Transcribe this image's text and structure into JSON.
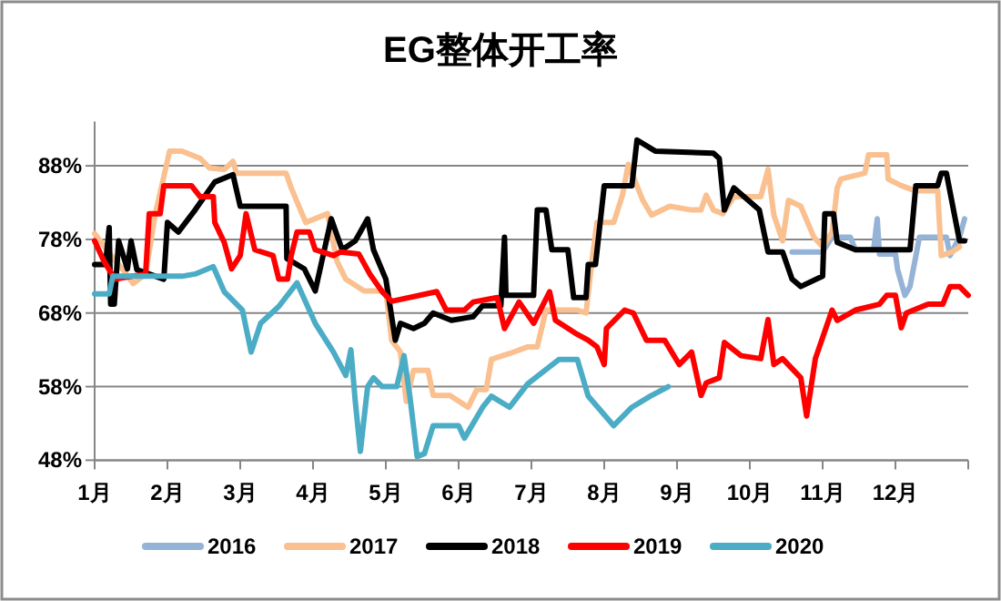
{
  "chart_data": {
    "type": "line",
    "title": "EG整体开工率",
    "xlim": [
      1,
      13
    ],
    "xticks": [
      {
        "value": 1,
        "label": "1月"
      },
      {
        "value": 2,
        "label": "2月"
      },
      {
        "value": 3,
        "label": "3月"
      },
      {
        "value": 4,
        "label": "4月"
      },
      {
        "value": 5,
        "label": "5月"
      },
      {
        "value": 6,
        "label": "6月"
      },
      {
        "value": 7,
        "label": "7月"
      },
      {
        "value": 8,
        "label": "8月"
      },
      {
        "value": 9,
        "label": "9月"
      },
      {
        "value": 10,
        "label": "10月"
      },
      {
        "value": 11,
        "label": "11月"
      },
      {
        "value": 12,
        "label": "12月"
      },
      {
        "value": 13,
        "label": null
      }
    ],
    "ylim": [
      48,
      94
    ],
    "yticks": [
      {
        "value": 48,
        "label": "48%"
      },
      {
        "value": 58,
        "label": "58%"
      },
      {
        "value": 68,
        "label": "68%"
      },
      {
        "value": 78,
        "label": "78%"
      },
      {
        "value": 88,
        "label": "88%"
      }
    ],
    "grid": "y",
    "legend": "bottom",
    "marker": "none",
    "line_style": "solid",
    "series": [
      {
        "name": "2016",
        "color": "#95b3d7",
        "x": [
          10.58,
          11.0,
          11.13,
          11.38,
          11.45,
          11.7,
          11.75,
          11.78,
          12.0,
          12.03,
          12.13,
          12.2,
          12.33,
          12.7,
          12.75,
          12.88,
          12.95
        ],
        "values": [
          76.3,
          76.3,
          78.3,
          78.3,
          76.6,
          76.6,
          80.8,
          76,
          76,
          73.9,
          70.4,
          71.6,
          78.3,
          78.3,
          75.8,
          78.3,
          80.8
        ]
      },
      {
        "name": "2017",
        "color": "#fac090",
        "x": [
          1.0,
          1.25,
          1.38,
          1.53,
          1.7,
          1.83,
          2.03,
          2.2,
          2.45,
          2.58,
          2.78,
          2.9,
          2.95,
          3.63,
          3.7,
          3.9,
          4.2,
          4.33,
          4.45,
          4.7,
          5.0,
          5.08,
          5.2,
          5.28,
          5.38,
          5.58,
          5.65,
          5.88,
          6.13,
          6.25,
          6.38,
          6.45,
          6.7,
          6.95,
          7.08,
          7.2,
          7.38,
          7.63,
          7.75,
          7.83,
          7.9,
          8.13,
          8.25,
          8.33,
          8.53,
          8.65,
          8.9,
          9.2,
          9.33,
          9.4,
          9.5,
          9.63,
          9.78,
          10.15,
          10.25,
          10.33,
          10.45,
          10.53,
          10.7,
          10.88,
          11.0,
          11.13,
          11.2,
          11.25,
          11.58,
          11.63,
          11.88,
          11.9,
          12.08,
          12.28,
          12.58,
          12.63,
          12.78,
          12.88
        ],
        "values": [
          78.8,
          75.5,
          74,
          72,
          73.3,
          81.3,
          90,
          90,
          89,
          87.7,
          87.5,
          88.6,
          87,
          87,
          85,
          80.3,
          81.5,
          75,
          72.6,
          71,
          71,
          64.3,
          62.7,
          56,
          60.2,
          60.2,
          56.8,
          56.8,
          55.2,
          57.6,
          57.6,
          61.7,
          62.5,
          63.4,
          63.4,
          68.4,
          68.4,
          68.4,
          68,
          75,
          80.3,
          80.3,
          84,
          88.2,
          83.3,
          81.3,
          82.5,
          82,
          82,
          84,
          82,
          81.5,
          83.8,
          83.8,
          87.5,
          81.3,
          77.8,
          83.3,
          82.5,
          78.3,
          77,
          79,
          85,
          86.2,
          87,
          89.5,
          89.5,
          86.2,
          85.3,
          84.6,
          84.6,
          75.8,
          76.3,
          77
        ]
      },
      {
        "name": "2018",
        "color": "#000000",
        "x": [
          1.0,
          1.15,
          1.2,
          1.22,
          1.27,
          1.33,
          1.45,
          1.5,
          1.58,
          1.95,
          2.0,
          2.15,
          2.38,
          2.65,
          2.9,
          3.0,
          3.63,
          3.64,
          3.88,
          4.03,
          4.25,
          4.4,
          4.58,
          4.75,
          4.83,
          5.0,
          5.13,
          5.2,
          5.38,
          5.53,
          5.65,
          5.9,
          6.2,
          6.33,
          6.58,
          6.63,
          6.65,
          7.03,
          7.08,
          7.2,
          7.28,
          7.5,
          7.58,
          7.75,
          7.78,
          7.88,
          8.0,
          8.38,
          8.45,
          8.7,
          9.5,
          9.58,
          9.65,
          9.78,
          10.13,
          10.25,
          10.45,
          10.58,
          10.7,
          11.0,
          11.03,
          11.15,
          11.2,
          11.45,
          12.2,
          12.28,
          12.58,
          12.63,
          12.7,
          12.88,
          12.95
        ],
        "values": [
          74.6,
          74.6,
          79.6,
          69.2,
          69.2,
          77.8,
          74,
          77.8,
          73.9,
          72.6,
          80.3,
          79,
          82,
          85.8,
          86.8,
          82.5,
          82.5,
          75.4,
          74,
          71,
          80.8,
          76.6,
          77.8,
          80.8,
          76.6,
          72.6,
          64.3,
          66.6,
          65.9,
          66.6,
          68,
          67,
          67.5,
          69,
          69,
          78.3,
          70.4,
          70.4,
          82,
          82,
          76.6,
          76.6,
          70.1,
          70.1,
          74.6,
          74.6,
          85.3,
          85.3,
          91.5,
          90,
          89.7,
          89,
          82,
          85,
          82,
          76.3,
          76.3,
          72.6,
          71.6,
          73,
          81.5,
          81.5,
          77.6,
          76.6,
          76.6,
          85.3,
          85.3,
          87,
          87,
          77.8,
          77.8
        ]
      },
      {
        "name": "2019",
        "color": "#ff0000",
        "x": [
          1.0,
          1.13,
          1.28,
          1.7,
          1.75,
          1.9,
          1.95,
          2.33,
          2.45,
          2.63,
          2.65,
          2.78,
          2.88,
          3.0,
          3.08,
          3.2,
          3.45,
          3.53,
          3.65,
          3.7,
          3.78,
          3.95,
          4.03,
          4.28,
          4.38,
          4.63,
          4.78,
          4.95,
          5.08,
          5.7,
          5.83,
          6.08,
          6.2,
          6.53,
          6.63,
          6.83,
          7.03,
          7.25,
          7.33,
          7.63,
          7.78,
          7.9,
          8.0,
          8.03,
          8.28,
          8.4,
          8.58,
          8.83,
          9.03,
          9.2,
          9.33,
          9.4,
          9.58,
          9.65,
          9.88,
          10.15,
          10.25,
          10.33,
          10.45,
          10.7,
          10.78,
          10.9,
          11.13,
          11.2,
          11.45,
          11.78,
          11.88,
          12.0,
          12.08,
          12.15,
          12.45,
          12.65,
          12.75,
          12.88,
          13.0
        ],
        "values": [
          77.8,
          75,
          72.6,
          73.3,
          81.5,
          81.5,
          85.3,
          85.3,
          83.8,
          83.8,
          80.3,
          77.6,
          74,
          75.8,
          81.5,
          76.6,
          75.8,
          72.6,
          72.6,
          75.8,
          79,
          79,
          76.6,
          75.8,
          76.3,
          76,
          73.3,
          70.9,
          69.6,
          70.9,
          68.4,
          68.4,
          69.5,
          70.1,
          65.9,
          69.5,
          66.6,
          70.9,
          67,
          65.1,
          64.3,
          63.4,
          61,
          65.9,
          68.4,
          68,
          64.3,
          64.3,
          61,
          62.7,
          56.8,
          58.5,
          59.2,
          64,
          62.2,
          61.8,
          67.1,
          61,
          61.8,
          59.2,
          54,
          61.8,
          68.4,
          67,
          68.4,
          69.2,
          70.4,
          70.4,
          66,
          68,
          69.2,
          69.2,
          71.6,
          71.6,
          70.4
        ]
      },
      {
        "name": "2020",
        "color": "#4bacc6",
        "x": [
          1.0,
          1.2,
          1.25,
          2.2,
          2.38,
          2.63,
          2.78,
          3.03,
          3.15,
          3.28,
          3.53,
          3.78,
          4.03,
          4.28,
          4.45,
          4.52,
          4.58,
          4.65,
          4.75,
          4.83,
          4.95,
          5.15,
          5.25,
          5.33,
          5.43,
          5.53,
          5.65,
          6.0,
          6.08,
          6.33,
          6.45,
          6.7,
          6.95,
          7.38,
          7.63,
          7.78,
          8.13,
          8.38,
          8.63,
          8.88
        ],
        "values": [
          70.6,
          70.6,
          73,
          73,
          73.3,
          74.3,
          70.9,
          68.4,
          62.7,
          66.6,
          68.9,
          72.1,
          66.6,
          62.7,
          59.5,
          63,
          56,
          49.2,
          58,
          59.2,
          58,
          58,
          62.2,
          56.7,
          48.5,
          48.9,
          52.7,
          52.7,
          51,
          55.2,
          56.7,
          55.2,
          58.4,
          61.7,
          61.7,
          56.7,
          52.7,
          55.2,
          56.7,
          58
        ]
      }
    ]
  }
}
